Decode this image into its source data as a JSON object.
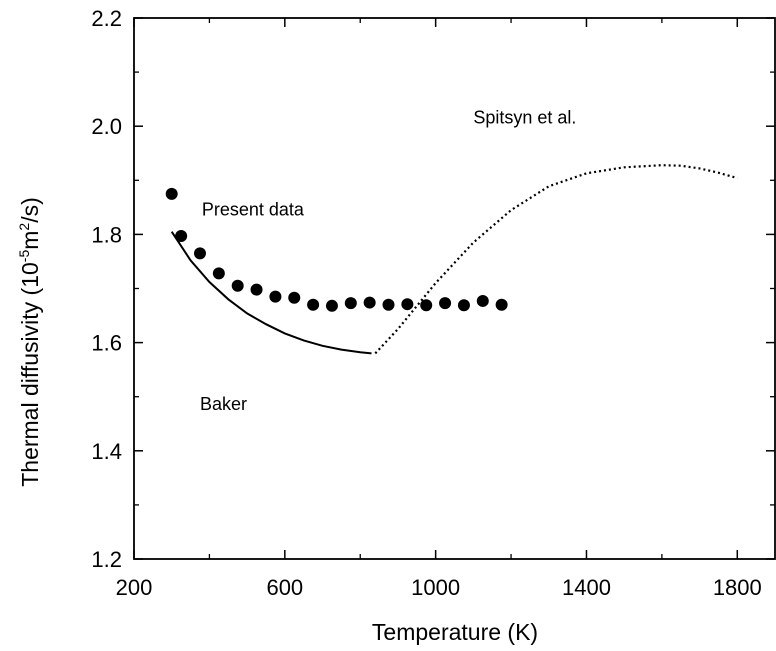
{
  "chart_data": {
    "type": "scatter",
    "xlabel": "Temperature (K)",
    "ylabel": {
      "prefix": "Thermal diffusivity (10",
      "exp1": "-5",
      "mid": "m",
      "exp2": "2",
      "suffix": "/s)"
    },
    "xlim": [
      200,
      1900
    ],
    "ylim": [
      1.2,
      2.2
    ],
    "xticks": [
      200,
      600,
      1000,
      1400,
      1800
    ],
    "xtick_labels": [
      "200",
      "600",
      "1000",
      "1400",
      "1800"
    ],
    "yticks": [
      1.2,
      1.4,
      1.6,
      1.8,
      2.0,
      2.2
    ],
    "ytick_labels": [
      "1.2",
      "1.4",
      "1.6",
      "1.8",
      "2.0",
      "2.2"
    ],
    "grid": false,
    "series": [
      {
        "name": "Present data",
        "style": "markers",
        "x": [
          300,
          325,
          375,
          425,
          475,
          525,
          575,
          625,
          675,
          725,
          775,
          825,
          875,
          925,
          975,
          1025,
          1075,
          1125,
          1175
        ],
        "y": [
          1.875,
          1.797,
          1.765,
          1.728,
          1.705,
          1.698,
          1.685,
          1.683,
          1.67,
          1.668,
          1.673,
          1.674,
          1.67,
          1.671,
          1.669,
          1.673,
          1.669,
          1.677,
          1.67
        ]
      },
      {
        "name": "Baker",
        "style": "solid",
        "x": [
          300,
          350,
          400,
          450,
          500,
          550,
          600,
          650,
          700,
          750,
          800,
          830
        ],
        "y": [
          1.805,
          1.752,
          1.712,
          1.68,
          1.654,
          1.634,
          1.617,
          1.604,
          1.594,
          1.587,
          1.582,
          1.58
        ]
      },
      {
        "name": "Spitsyn et al.",
        "style": "dotted",
        "x": [
          840,
          900,
          1000,
          1100,
          1200,
          1300,
          1400,
          1500,
          1600,
          1650,
          1700,
          1750,
          1800
        ],
        "y": [
          1.58,
          1.625,
          1.71,
          1.785,
          1.845,
          1.889,
          1.913,
          1.924,
          1.928,
          1.927,
          1.922,
          1.914,
          1.904
        ]
      }
    ],
    "annotations": [
      {
        "text": "Present data",
        "x": 380,
        "y": 1.835
      },
      {
        "text": "Baker",
        "x": 375,
        "y": 1.475
      },
      {
        "text": "Spitsyn et al.",
        "x": 1100,
        "y": 2.005
      }
    ]
  }
}
